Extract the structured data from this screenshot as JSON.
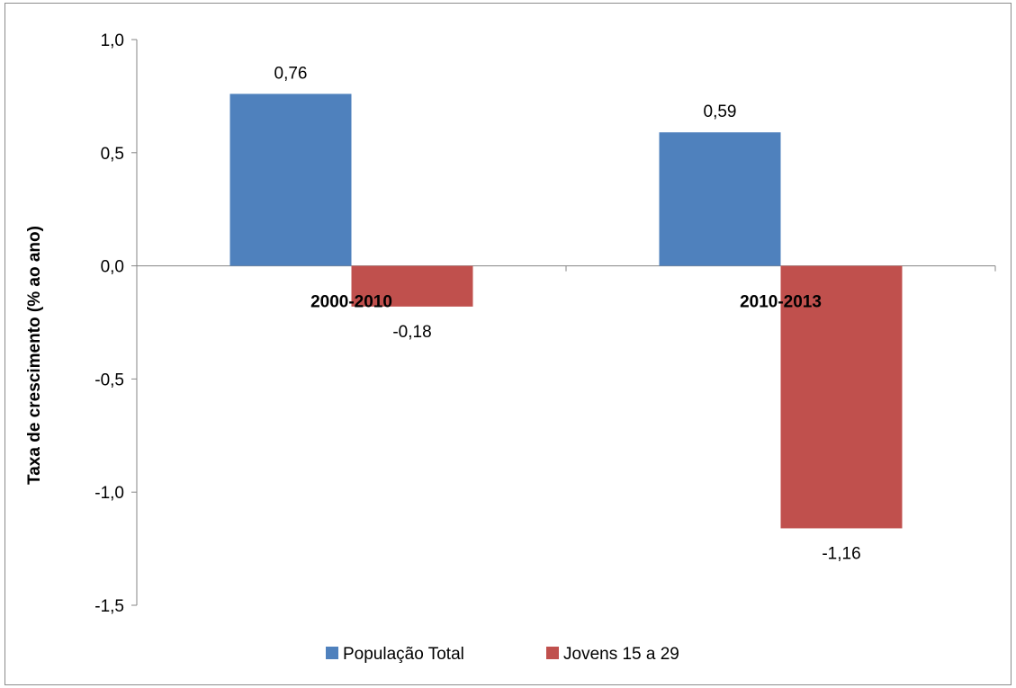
{
  "chart_data": {
    "type": "bar",
    "title": "",
    "xlabel": "",
    "ylabel": "Taxa de crescimento (% ao ano)",
    "categories": [
      "2000-2010",
      "2010-2013"
    ],
    "series": [
      {
        "name": "População Total",
        "values": [
          0.76,
          0.59
        ],
        "labels": [
          "0,76",
          "0,59"
        ],
        "color": "#4f81bd"
      },
      {
        "name": "Jovens 15 a 29",
        "values": [
          -0.18,
          -1.16
        ],
        "labels": [
          "-0,18",
          "-1,16"
        ],
        "color": "#c0504d"
      }
    ],
    "ylim": [
      -1.5,
      1.0
    ],
    "yticks": [
      1.0,
      0.5,
      0.0,
      -0.5,
      -1.0,
      -1.5
    ],
    "ytick_labels": [
      "1,0",
      "0,5",
      "0,0",
      "-0,5",
      "-1,0",
      "-1,5"
    ],
    "grid": false,
    "legend_position": "bottom"
  }
}
